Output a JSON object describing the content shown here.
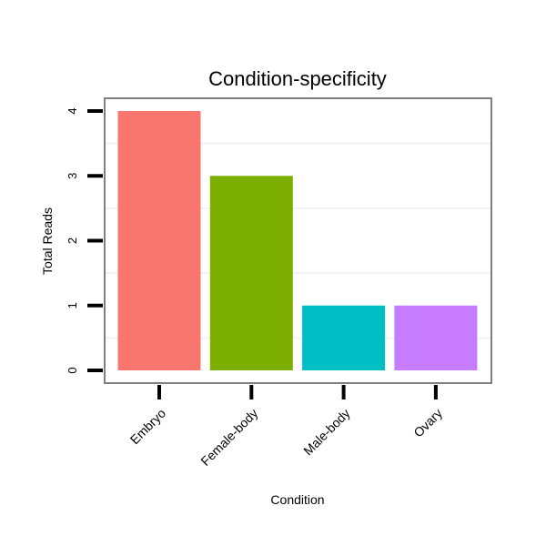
{
  "chart_data": {
    "type": "bar",
    "title": "Condition-specificity",
    "xlabel": "Condition",
    "ylabel": "Total Reads",
    "categories": [
      "Embryo",
      "Female-body",
      "Male-body",
      "Ovary"
    ],
    "values": [
      4,
      3,
      1,
      1
    ],
    "colors": [
      "#F8766D",
      "#7CAE00",
      "#00BFC4",
      "#C77CFF"
    ],
    "ylim": [
      0,
      4
    ],
    "yticks": [
      "0",
      "1",
      "2",
      "3",
      "4"
    ],
    "grid": true,
    "legend": "none"
  }
}
